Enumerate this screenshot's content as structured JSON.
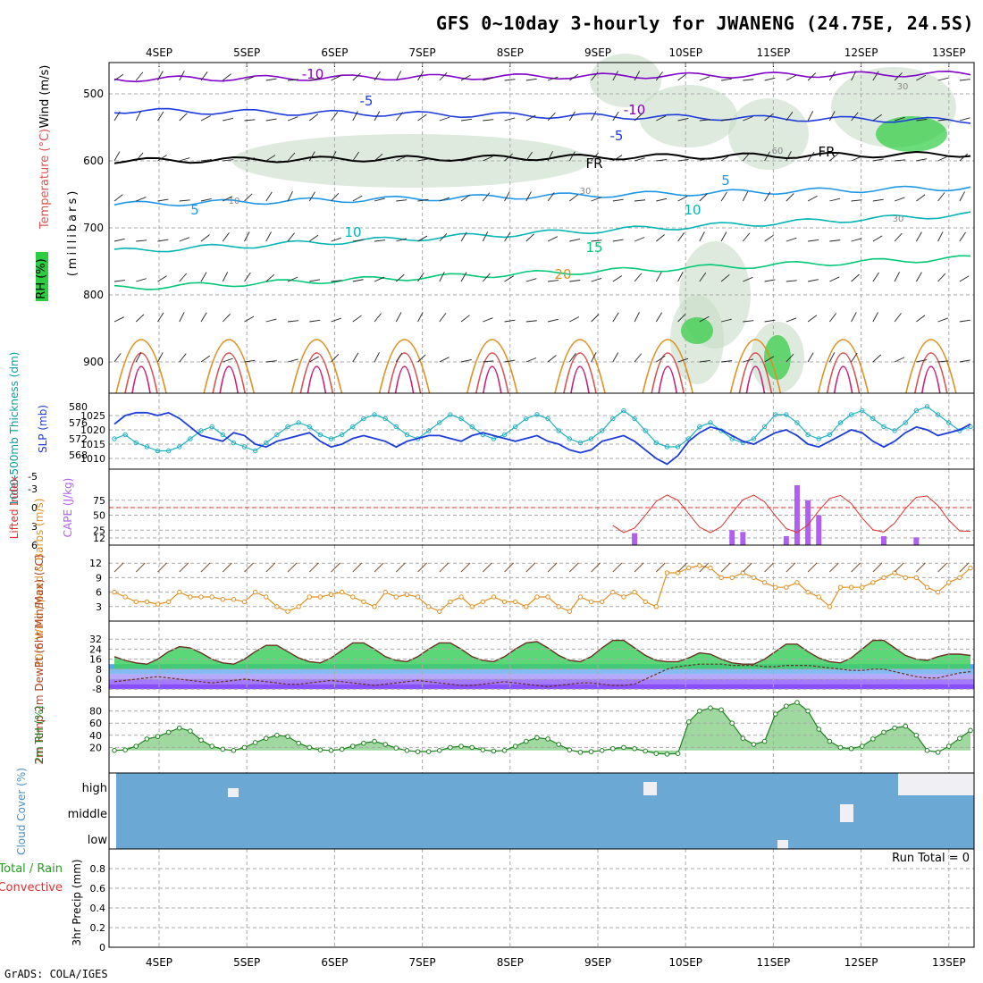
{
  "title": "GFS 0~10day 3-hourly for JWANENG (24.75E, 24.5S)",
  "credit": "GrADS: COLA/IGES",
  "chart_data": {
    "type": "meteogram",
    "days": [
      "4SEP",
      "5SEP",
      "6SEP",
      "7SEP",
      "8SEP",
      "9SEP",
      "10SEP",
      "11SEP",
      "12SEP",
      "13SEP"
    ],
    "panels": {
      "upper": {
        "ylabel_rh": "RH (%)",
        "ylabel_temp": "Temperature (°C)",
        "ylabel_wind": "Wind (m/s)",
        "ylabel_levels": "(millibars)",
        "yticks": [
          500,
          600,
          700,
          800,
          900
        ],
        "contour_labels": [
          "-10",
          "-5",
          "FR",
          "5",
          "10",
          "15",
          "20",
          "-10",
          "-5",
          "FR",
          "5",
          "10",
          "30",
          "10",
          "30",
          "60",
          "30"
        ],
        "isotherms": [
          {
            "label": "-10",
            "color": "#8000c8",
            "level_start": 478,
            "level_end": 470
          },
          {
            "label": "-5",
            "color": "#1e3cdc",
            "level_start": 525,
            "level_end": 540
          },
          {
            "label": "FR",
            "color": "#000000",
            "level_start": 600,
            "level_end": 590
          },
          {
            "label": "5",
            "color": "#1e96e6",
            "level_start": 665,
            "level_end": 640
          },
          {
            "label": "10",
            "color": "#00b4b4",
            "level_start": 735,
            "level_end": 680
          },
          {
            "label": "15",
            "color": "#00c878",
            "level_start": 790,
            "level_end": 745
          }
        ]
      },
      "thickness_slp": {
        "ylabel_thickness": "1000-500mb Thickness (dm)",
        "ylabel_slp": "SLP (mb)",
        "thickness_ticks": [
          568,
          572,
          576,
          580
        ],
        "slp_ticks": [
          1010,
          1015,
          1020,
          1025
        ],
        "slp": [
          1022,
          1025,
          1026,
          1026,
          1025,
          1026,
          1024,
          1021,
          1018,
          1017,
          1016,
          1019,
          1018,
          1015,
          1014,
          1016,
          1017,
          1018,
          1019,
          1016,
          1014,
          1015,
          1017,
          1018,
          1017,
          1016,
          1014,
          1016,
          1017,
          1018,
          1018,
          1017,
          1016,
          1018,
          1019,
          1018,
          1017,
          1016,
          1017,
          1018,
          1016,
          1015,
          1013,
          1012,
          1013,
          1016,
          1017,
          1018,
          1016,
          1013,
          1010,
          1008,
          1011,
          1016,
          1019,
          1021,
          1020,
          1018,
          1016,
          1015,
          1017,
          1019,
          1020,
          1018,
          1015,
          1014,
          1016,
          1018,
          1020,
          1019,
          1016,
          1014,
          1016,
          1019,
          1021,
          1020,
          1018,
          1019,
          1020,
          1022
        ],
        "thickness": [
          572,
          573,
          571,
          570,
          569,
          569,
          570,
          572,
          574,
          575,
          573,
          571,
          570,
          569,
          571,
          573,
          575,
          576,
          575,
          573,
          572,
          573,
          575,
          577,
          578,
          577,
          575,
          573,
          572,
          574,
          576,
          578,
          577,
          575,
          573,
          572,
          573,
          575,
          577,
          578,
          577,
          574,
          572,
          571,
          572,
          574,
          577,
          579,
          577,
          574,
          571,
          570,
          570,
          572,
          575,
          576,
          574,
          572,
          571,
          572,
          575,
          578,
          578,
          576,
          573,
          572,
          573,
          576,
          578,
          579,
          577,
          575,
          574,
          576,
          579,
          580,
          578,
          576,
          574,
          575
        ]
      },
      "instability": {
        "ylabel_li": "Lifted Index",
        "ylabel_cape": "CAPE (J/kg)",
        "li_ticks": [
          -5,
          -3,
          0,
          3,
          6
        ],
        "cape_ticks": [
          12,
          25,
          50,
          75
        ],
        "cape_bars": [
          {
            "i": 48,
            "v": 20
          },
          {
            "i": 57,
            "v": 25
          },
          {
            "i": 58,
            "v": 22
          },
          {
            "i": 62,
            "v": 15
          },
          {
            "i": 63,
            "v": 100
          },
          {
            "i": 64,
            "v": 75
          },
          {
            "i": 65,
            "v": 50
          },
          {
            "i": 71,
            "v": 15
          },
          {
            "i": 74,
            "v": 13
          }
        ]
      },
      "wind10m": {
        "ylabel": "10m Wind Speed & Barbs (m/s)",
        "yticks": [
          3,
          6,
          9,
          12
        ],
        "speed": [
          6,
          5,
          4,
          4,
          3.5,
          4,
          6,
          5,
          5,
          5,
          4.5,
          4.5,
          4,
          6,
          5,
          3,
          2,
          3,
          5,
          5,
          5.5,
          6,
          5,
          4,
          3,
          6,
          5,
          5.5,
          5,
          3,
          2,
          4,
          5,
          3,
          4,
          5,
          4,
          4,
          3,
          5,
          5,
          3,
          2,
          5,
          4,
          4,
          6,
          5,
          6,
          4,
          3,
          10,
          10,
          11,
          11.5,
          11,
          9,
          9,
          10,
          9,
          8,
          7,
          7,
          8,
          6,
          5,
          3,
          7,
          7,
          7,
          8,
          9,
          10,
          9,
          9,
          7,
          6,
          8,
          9,
          11
        ]
      },
      "temp2m": {
        "ylabel": "2m Temp 2m DewPt (6hr Min/Max) (°C)",
        "yticks": [
          -8,
          0,
          8,
          16,
          24,
          32
        ],
        "temp": [
          18,
          15,
          13,
          12,
          16,
          22,
          26,
          25,
          21,
          16,
          13,
          12,
          16,
          22,
          27,
          27,
          22,
          17,
          14,
          13,
          17,
          23,
          29,
          29,
          24,
          18,
          15,
          14,
          18,
          24,
          29,
          29,
          24,
          18,
          15,
          14,
          18,
          24,
          29,
          30,
          25,
          19,
          15,
          14,
          18,
          25,
          31,
          31,
          25,
          19,
          15,
          14,
          14,
          17,
          21,
          20,
          16,
          13,
          12,
          12,
          16,
          22,
          28,
          28,
          22,
          17,
          14,
          13,
          17,
          24,
          31,
          31,
          25,
          19,
          16,
          15,
          18,
          20,
          20,
          19
        ],
        "dewpt": [
          -2,
          -1,
          0,
          1,
          2,
          1,
          0,
          -1,
          -2,
          -3,
          -2,
          -1,
          0,
          -1,
          -2,
          -3,
          -4,
          -4,
          -3,
          -2,
          -1,
          -2,
          -3,
          -4,
          -5,
          -4,
          -3,
          -2,
          -1,
          -2,
          -3,
          -4,
          -5,
          -5,
          -4,
          -3,
          -2,
          -3,
          -4,
          -5,
          -6,
          -5,
          -4,
          -3,
          -3,
          -4,
          -5,
          -5,
          -4,
          0,
          4,
          8,
          10,
          11,
          12,
          12,
          12,
          11,
          11,
          11,
          10,
          10,
          11,
          11,
          11,
          10,
          9,
          8,
          7,
          7,
          8,
          8,
          6,
          4,
          2,
          1,
          1,
          3,
          5,
          6
        ]
      },
      "rh2m": {
        "ylabel": "2m RH (%)",
        "yticks": [
          20,
          40,
          60,
          80
        ],
        "rh": [
          15,
          16,
          22,
          34,
          38,
          45,
          52,
          47,
          32,
          22,
          17,
          15,
          20,
          28,
          35,
          40,
          38,
          27,
          20,
          16,
          15,
          17,
          22,
          27,
          30,
          25,
          19,
          15,
          13,
          13,
          15,
          20,
          22,
          20,
          16,
          14,
          15,
          22,
          30,
          36,
          34,
          25,
          16,
          12,
          13,
          15,
          18,
          20,
          18,
          14,
          10,
          9,
          10,
          62,
          80,
          85,
          82,
          60,
          35,
          25,
          30,
          75,
          88,
          94,
          80,
          50,
          30,
          20,
          18,
          22,
          34,
          45,
          52,
          55,
          40,
          15,
          12,
          22,
          35,
          48
        ]
      },
      "cloud": {
        "ylabel": "Cloud Cover (%)",
        "rows": [
          "high",
          "middle",
          "low"
        ],
        "color": "#6ba8d4"
      },
      "precip": {
        "ylabel": "3hr Precip (mm)",
        "legend_total": "Total / Rain",
        "legend_conv": "Convective",
        "run_total_label": "Run Total = 0",
        "yticks": [
          "0",
          "0.2",
          "0.4",
          "0.6",
          "0.8"
        ],
        "ylim": [
          0,
          1
        ]
      }
    }
  }
}
